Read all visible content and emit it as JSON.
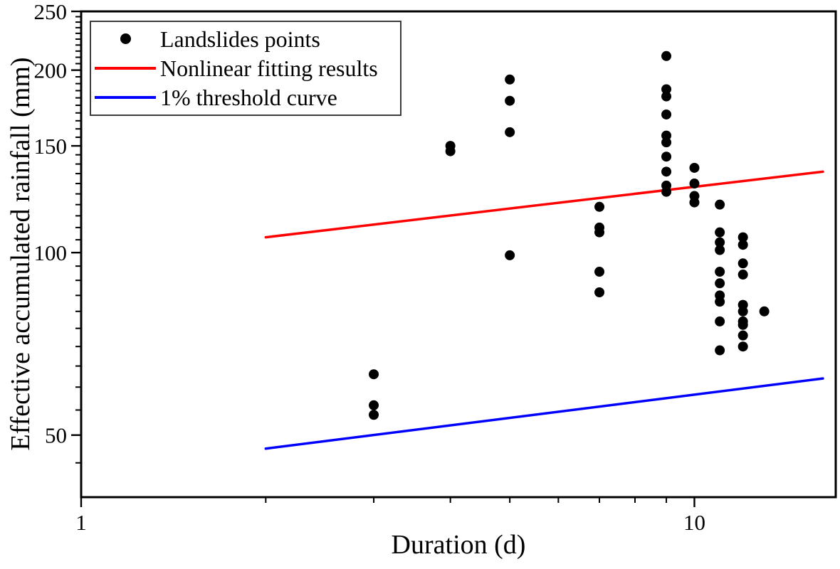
{
  "chart_data": {
    "type": "scatter",
    "title": "",
    "xlabel": "Duration (d)",
    "ylabel": "Effective accumulated rainfall (mm)",
    "x_scale": "log",
    "y_scale": "log",
    "xlim": [
      1,
      17
    ],
    "ylim": [
      39.5,
      250
    ],
    "grid": false,
    "legend_position": "top-left",
    "x_major_ticks": [
      1,
      10
    ],
    "x_major_tick_labels": [
      "1",
      "10"
    ],
    "x_minor_ticks": [
      2,
      3,
      4,
      5,
      6,
      7,
      8,
      9
    ],
    "y_major_ticks": [
      50,
      100,
      150,
      200,
      250
    ],
    "y_major_tick_labels": [
      "50",
      "100",
      "150",
      "200",
      "250"
    ],
    "y_minor_step": 5,
    "y_minor_range": [
      45,
      245
    ],
    "series": [
      {
        "name": "Landslides points",
        "kind": "scatter",
        "marker": "circle",
        "marker_radius": 7,
        "color": "#000000",
        "points": [
          [
            3,
            63
          ],
          [
            3,
            56
          ],
          [
            3,
            54
          ],
          [
            4,
            150
          ],
          [
            4,
            147
          ],
          [
            5,
            193
          ],
          [
            5,
            178
          ],
          [
            5,
            158
          ],
          [
            5,
            99
          ],
          [
            7,
            119
          ],
          [
            7,
            110
          ],
          [
            7,
            108
          ],
          [
            7,
            93
          ],
          [
            7,
            86
          ],
          [
            9,
            211
          ],
          [
            9,
            186
          ],
          [
            9,
            181
          ],
          [
            9,
            169
          ],
          [
            9,
            156
          ],
          [
            9,
            152
          ],
          [
            9,
            144
          ],
          [
            9,
            136
          ],
          [
            9,
            129
          ],
          [
            9,
            126
          ],
          [
            10,
            138
          ],
          [
            10,
            130
          ],
          [
            10,
            124
          ],
          [
            10,
            121
          ],
          [
            11,
            120
          ],
          [
            11,
            108
          ],
          [
            11,
            104
          ],
          [
            11,
            101
          ],
          [
            11,
            93
          ],
          [
            11,
            89
          ],
          [
            11,
            85
          ],
          [
            11,
            83
          ],
          [
            11,
            77
          ],
          [
            11,
            69
          ],
          [
            12,
            106
          ],
          [
            12,
            103
          ],
          [
            12,
            96
          ],
          [
            12,
            92
          ],
          [
            12,
            82
          ],
          [
            12,
            80
          ],
          [
            12,
            77
          ],
          [
            12,
            76
          ],
          [
            12,
            73
          ],
          [
            12,
            70
          ],
          [
            13,
            80
          ]
        ]
      },
      {
        "name": "Nonlinear fitting results",
        "kind": "line",
        "color": "#ff0000",
        "line_width": 3.5,
        "points": [
          [
            2,
            106
          ],
          [
            16.2,
            136
          ]
        ]
      },
      {
        "name": "1% threshold curve",
        "kind": "line",
        "color": "#0000ff",
        "line_width": 3.5,
        "points": [
          [
            2,
            47.5
          ],
          [
            16.2,
            62
          ]
        ]
      }
    ]
  },
  "legend": {
    "items": [
      {
        "label": "Landslides points",
        "marker": "dot",
        "color": "#000000"
      },
      {
        "label": "Nonlinear fitting results",
        "marker": "line",
        "color": "#ff0000"
      },
      {
        "label": "1% threshold curve",
        "marker": "line",
        "color": "#0000ff"
      }
    ]
  }
}
